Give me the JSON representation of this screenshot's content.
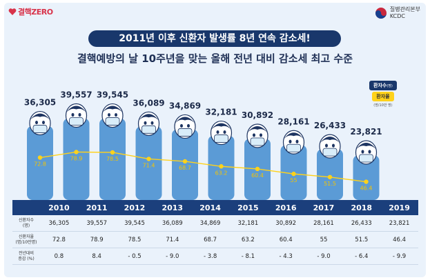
{
  "header": {
    "left_logo_text": "결핵ZERO",
    "right_logo_line1": "질병관리본부",
    "right_logo_line2": "KCDC"
  },
  "title": "2011년 이후 신환자 발생률 8년 연속 감소세!",
  "subtitle": "결핵예방의 날 10주년을 맞는 올해 전년 대비 감소세 최고 수준",
  "legend": {
    "patients_label": "환자수",
    "patients_unit": "(명)",
    "rate_label": "환자율",
    "rate_unit": "(명/10만 명)"
  },
  "colors": {
    "bar": "#5b9bd6",
    "face": "#ffffff",
    "line": "#ffd21a",
    "title_bg": "#19376b",
    "table_header": "#1b3f7c"
  },
  "chart_data": {
    "type": "bar",
    "categories": [
      "2010",
      "2011",
      "2012",
      "2013",
      "2014",
      "2015",
      "2016",
      "2017",
      "2018",
      "2019"
    ],
    "series": [
      {
        "name": "환자수",
        "type": "bar",
        "values": [
          36305,
          39557,
          39545,
          36089,
          34869,
          32181,
          30892,
          28161,
          26433,
          23821
        ],
        "labels": [
          "36,305",
          "39,557",
          "39,545",
          "36,089",
          "34,869",
          "32,181",
          "30,892",
          "28,161",
          "26,433",
          "23,821"
        ]
      },
      {
        "name": "환자율",
        "type": "line",
        "values": [
          72.8,
          78.9,
          78.5,
          71.4,
          68.7,
          63.2,
          60.4,
          55,
          51.5,
          46.4
        ],
        "labels": [
          "72.8",
          "78.9",
          "78.5",
          "71.4",
          "68.7",
          "63.2",
          "60.4",
          "55",
          "51.5",
          "46.4"
        ]
      }
    ]
  },
  "table": {
    "row_labels": [
      {
        "line1": "신환자수",
        "line2": "(명)"
      },
      {
        "line1": "신환자율",
        "line2": "(명/10만명)"
      },
      {
        "line1": "전년대비",
        "line2": "증감 (%)"
      }
    ],
    "rows": [
      [
        "36,305",
        "39,557",
        "39,545",
        "36,089",
        "34,869",
        "32,181",
        "30,892",
        "28,161",
        "26,433",
        "23,821"
      ],
      [
        "72.8",
        "78.9",
        "78.5",
        "71.4",
        "68.7",
        "63.2",
        "60.4",
        "55",
        "51.5",
        "46.4"
      ],
      [
        "0.8",
        "8.4",
        "- 0.5",
        "- 9.0",
        "- 3.8",
        "- 8.1",
        "- 4.3",
        "- 9.0",
        "- 6.4",
        "- 9.9"
      ]
    ]
  }
}
